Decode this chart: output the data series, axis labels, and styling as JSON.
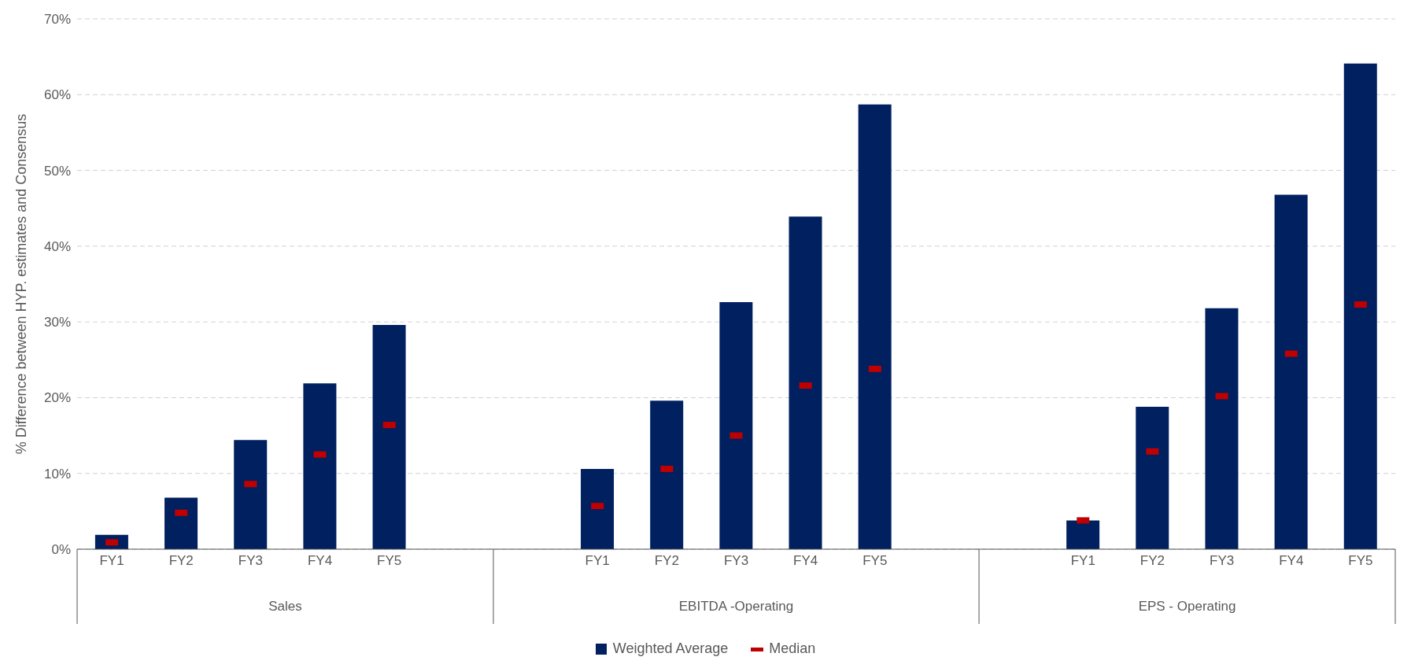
{
  "chart_data": {
    "type": "bar",
    "ylabel": "% Difference between HYP. estimates and Consensus",
    "categories": [
      "FY1",
      "FY2",
      "FY3",
      "FY4",
      "FY5",
      null,
      null,
      "FY1",
      "FY2",
      "FY3",
      "FY4",
      "FY5",
      null,
      null,
      "FY1",
      "FY2",
      "FY3",
      "FY4",
      "FY5"
    ],
    "series": [
      {
        "name": "Weighted Average",
        "type": "bar",
        "color": "#002060",
        "values": [
          1.9,
          6.8,
          14.4,
          21.9,
          29.6,
          null,
          null,
          10.6,
          19.6,
          32.6,
          43.9,
          58.7,
          null,
          null,
          3.8,
          18.8,
          31.8,
          46.8,
          64.1
        ]
      },
      {
        "name": "Median",
        "type": "scatter",
        "color": "#c00000",
        "values": [
          0.9,
          4.8,
          8.6,
          12.5,
          16.4,
          null,
          null,
          5.7,
          10.6,
          15.0,
          21.6,
          23.8,
          null,
          null,
          3.8,
          12.9,
          20.2,
          25.8,
          32.3
        ]
      }
    ],
    "ylim": [
      0,
      70
    ],
    "yticks": [
      {
        "value": 0,
        "label": "0%"
      },
      {
        "value": 10,
        "label": "10%"
      },
      {
        "value": 20,
        "label": "20%"
      },
      {
        "value": 30,
        "label": "30%"
      },
      {
        "value": 40,
        "label": "40%"
      },
      {
        "value": 50,
        "label": "50%"
      },
      {
        "value": 60,
        "label": "60%"
      },
      {
        "value": 70,
        "label": "70%"
      }
    ],
    "annotations": [
      "Sales",
      "EBITDA -Operating",
      "EPS - Operating"
    ],
    "grid": "y",
    "legend": "bottom"
  }
}
